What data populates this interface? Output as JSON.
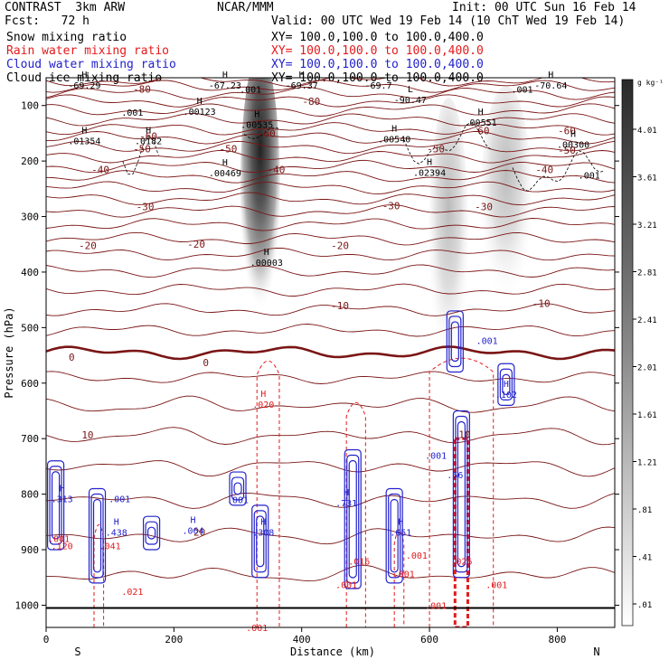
{
  "header": {
    "model": "CONTRAST  3km ARW",
    "fcst": "Fcst:   72 h",
    "org": "NCAR/MMM",
    "init": "Init: 00 UTC Sun 16 Feb 14",
    "valid": "Valid: 00 UTC Wed 19 Feb 14 (10 ChT Wed 19 Feb 14)"
  },
  "fields": [
    {
      "label": "Snow mixing ratio",
      "xy": "XY= 100.0,100.0 to 100.0,400.0",
      "color": "#000000"
    },
    {
      "label": "Rain water mixing ratio",
      "xy": "XY= 100.0,100.0 to 100.0,400.0",
      "color": "#e41a1c"
    },
    {
      "label": "Cloud water mixing ratio",
      "xy": "XY= 100.0,100.0 to 100.0,400.0",
      "color": "#2222cc"
    },
    {
      "label": "Cloud ice mixing ratio",
      "xy": "XY= 100.0,100.0 to 100.0,400.0",
      "color": "#000000"
    }
  ],
  "chart_data": {
    "type": "heatmap",
    "xlabel": "Distance (km)",
    "ylabel": "Pressure (hPa)",
    "xlim": [
      0,
      890
    ],
    "ylim": [
      1040,
      50
    ],
    "x_ticks": [
      0,
      200,
      400,
      600,
      800
    ],
    "y_ticks": [
      100,
      200,
      300,
      400,
      500,
      600,
      700,
      800,
      900,
      1000
    ],
    "end_labels": {
      "left": "S",
      "right": "N"
    },
    "colorbar": {
      "unit": "g kg⁻¹",
      "levels": [
        "4.01",
        "3.61",
        "3.21",
        "2.81",
        "2.41",
        "2.01",
        "1.61",
        "1.21",
        ".81",
        ".41",
        ".01"
      ]
    },
    "temperature_labels": [
      {
        "text": "-80",
        "x": 150,
        "p": 70
      },
      {
        "text": "-80",
        "x": 415,
        "p": 92
      },
      {
        "text": "-60",
        "x": 160,
        "p": 155
      },
      {
        "text": "-60",
        "x": 345,
        "p": 150
      },
      {
        "text": "-60",
        "x": 680,
        "p": 145
      },
      {
        "text": "-60",
        "x": 815,
        "p": 145
      },
      {
        "text": "-50",
        "x": 150,
        "p": 178
      },
      {
        "text": "-50",
        "x": 285,
        "p": 178
      },
      {
        "text": "-50",
        "x": 610,
        "p": 178
      },
      {
        "text": "-50",
        "x": 815,
        "p": 180
      },
      {
        "text": "-40",
        "x": 85,
        "p": 215
      },
      {
        "text": "-40",
        "x": 360,
        "p": 215
      },
      {
        "text": "-40",
        "x": 780,
        "p": 215
      },
      {
        "text": "-30",
        "x": 155,
        "p": 282
      },
      {
        "text": "-30",
        "x": 540,
        "p": 280
      },
      {
        "text": "-30",
        "x": 685,
        "p": 282
      },
      {
        "text": "-20",
        "x": 65,
        "p": 352
      },
      {
        "text": "-20",
        "x": 235,
        "p": 350
      },
      {
        "text": "-20",
        "x": 460,
        "p": 352
      },
      {
        "text": "-10",
        "x": 460,
        "p": 460
      },
      {
        "text": "-10",
        "x": 775,
        "p": 456
      },
      {
        "text": "0",
        "x": 40,
        "p": 553
      },
      {
        "text": "0",
        "x": 250,
        "p": 563
      },
      {
        "text": "10",
        "x": 65,
        "p": 693
      },
      {
        "text": "10",
        "x": 655,
        "p": 692
      },
      {
        "text": "20",
        "x": 240,
        "p": 868
      }
    ],
    "snow_extrema": [
      {
        "marker": "H",
        "value": "-69.29",
        "x": 60,
        "p": 63
      },
      {
        "marker": "H",
        "value": "-67.23",
        "x": 280,
        "p": 63
      },
      {
        "marker": "H",
        "value": "-69.37",
        "x": 400,
        "p": 63
      },
      {
        "marker": "",
        "value": "-69.7",
        "x": 520,
        "p": 63
      },
      {
        "marker": "H",
        "value": "-70.64",
        "x": 790,
        "p": 63
      },
      {
        "marker": "L",
        "value": "-90.47",
        "x": 570,
        "p": 89
      },
      {
        "marker": "",
        "value": ".001",
        "x": 320,
        "p": 70
      },
      {
        "marker": "",
        "value": ".001",
        "x": 135,
        "p": 112
      },
      {
        "marker": "H",
        "value": ".00123",
        "x": 240,
        "p": 110
      },
      {
        "marker": "H",
        "value": ".00535",
        "x": 330,
        "p": 134
      },
      {
        "marker": "H",
        "value": ".00551",
        "x": 680,
        "p": 130
      },
      {
        "marker": "",
        "value": ".001",
        "x": 745,
        "p": 70
      },
      {
        "marker": "H",
        "value": ".01354",
        "x": 60,
        "p": 163
      },
      {
        "marker": "H",
        "value": ".0182",
        "x": 160,
        "p": 163
      },
      {
        "marker": "H",
        "value": ".00540",
        "x": 545,
        "p": 160
      },
      {
        "marker": "H",
        "value": ".00300",
        "x": 825,
        "p": 170
      },
      {
        "marker": "H",
        "value": ".00469",
        "x": 280,
        "p": 221
      },
      {
        "marker": "H",
        "value": ".02394",
        "x": 600,
        "p": 220
      },
      {
        "marker": "",
        "value": ".001",
        "x": 850,
        "p": 225
      },
      {
        "marker": "H",
        "value": ".00003",
        "x": 345,
        "p": 382
      }
    ],
    "rain_extrema": [
      {
        "marker": "H",
        "value": ".020",
        "x": 340,
        "p": 638
      },
      {
        "marker": "",
        "value": ".001",
        "x": 20,
        "p": 880
      },
      {
        "marker": "",
        "value": ".120",
        "x": 25,
        "p": 893
      },
      {
        "marker": "",
        "value": ".041",
        "x": 100,
        "p": 893
      },
      {
        "marker": "",
        "value": ".021",
        "x": 135,
        "p": 975
      },
      {
        "marker": "",
        "value": ".001",
        "x": 330,
        "p": 1040
      },
      {
        "marker": "",
        "value": ".001",
        "x": 470,
        "p": 963
      },
      {
        "marker": "",
        "value": ".016",
        "x": 490,
        "p": 920
      },
      {
        "marker": "",
        "value": ".001",
        "x": 560,
        "p": 943
      },
      {
        "marker": "",
        "value": ".001",
        "x": 580,
        "p": 910
      },
      {
        "marker": "",
        "value": ".026",
        "x": 650,
        "p": 920
      },
      {
        "marker": "",
        "value": ".001",
        "x": 610,
        "p": 1000
      },
      {
        "marker": "",
        "value": ".001",
        "x": 705,
        "p": 963
      }
    ],
    "cloud_water_extrema": [
      {
        "marker": "",
        "value": ".001",
        "x": 690,
        "p": 523
      },
      {
        "marker": "H",
        "value": ".102",
        "x": 720,
        "p": 620
      },
      {
        "marker": "H",
        "value": ".313",
        "x": 25,
        "p": 808
      },
      {
        "marker": "",
        "value": ".001",
        "x": 115,
        "p": 808
      },
      {
        "marker": "H",
        "value": ".438",
        "x": 110,
        "p": 868
      },
      {
        "marker": "H",
        "value": ".064",
        "x": 230,
        "p": 865
      },
      {
        "marker": "",
        "value": ".001",
        "x": 300,
        "p": 810
      },
      {
        "marker": "H",
        "value": ".308",
        "x": 340,
        "p": 868
      },
      {
        "marker": "H",
        "value": ".731",
        "x": 470,
        "p": 815
      },
      {
        "marker": "H",
        "value": ".651",
        "x": 555,
        "p": 868
      },
      {
        "marker": "",
        "value": ".001",
        "x": 610,
        "p": 730
      },
      {
        "marker": "",
        "value": ".56",
        "x": 640,
        "p": 765
      }
    ]
  }
}
